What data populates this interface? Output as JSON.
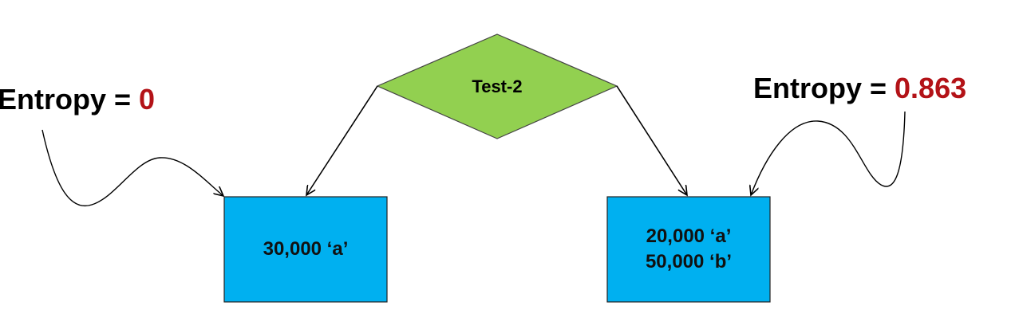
{
  "decision_node": {
    "label": "Test-2"
  },
  "left_leaf": {
    "lines": [
      "30,000 ‘a’"
    ]
  },
  "right_leaf": {
    "lines": [
      "20,000 ‘a’",
      "50,000 ‘b’"
    ]
  },
  "left_entropy": {
    "prefix": "Entropy = ",
    "value": "0"
  },
  "right_entropy": {
    "prefix": "Entropy = ",
    "value": "0.863"
  },
  "colors": {
    "diamond_fill": "#92d050",
    "box_fill": "#00b0f0",
    "entropy_value": "#b31217",
    "stroke": "#000000"
  }
}
